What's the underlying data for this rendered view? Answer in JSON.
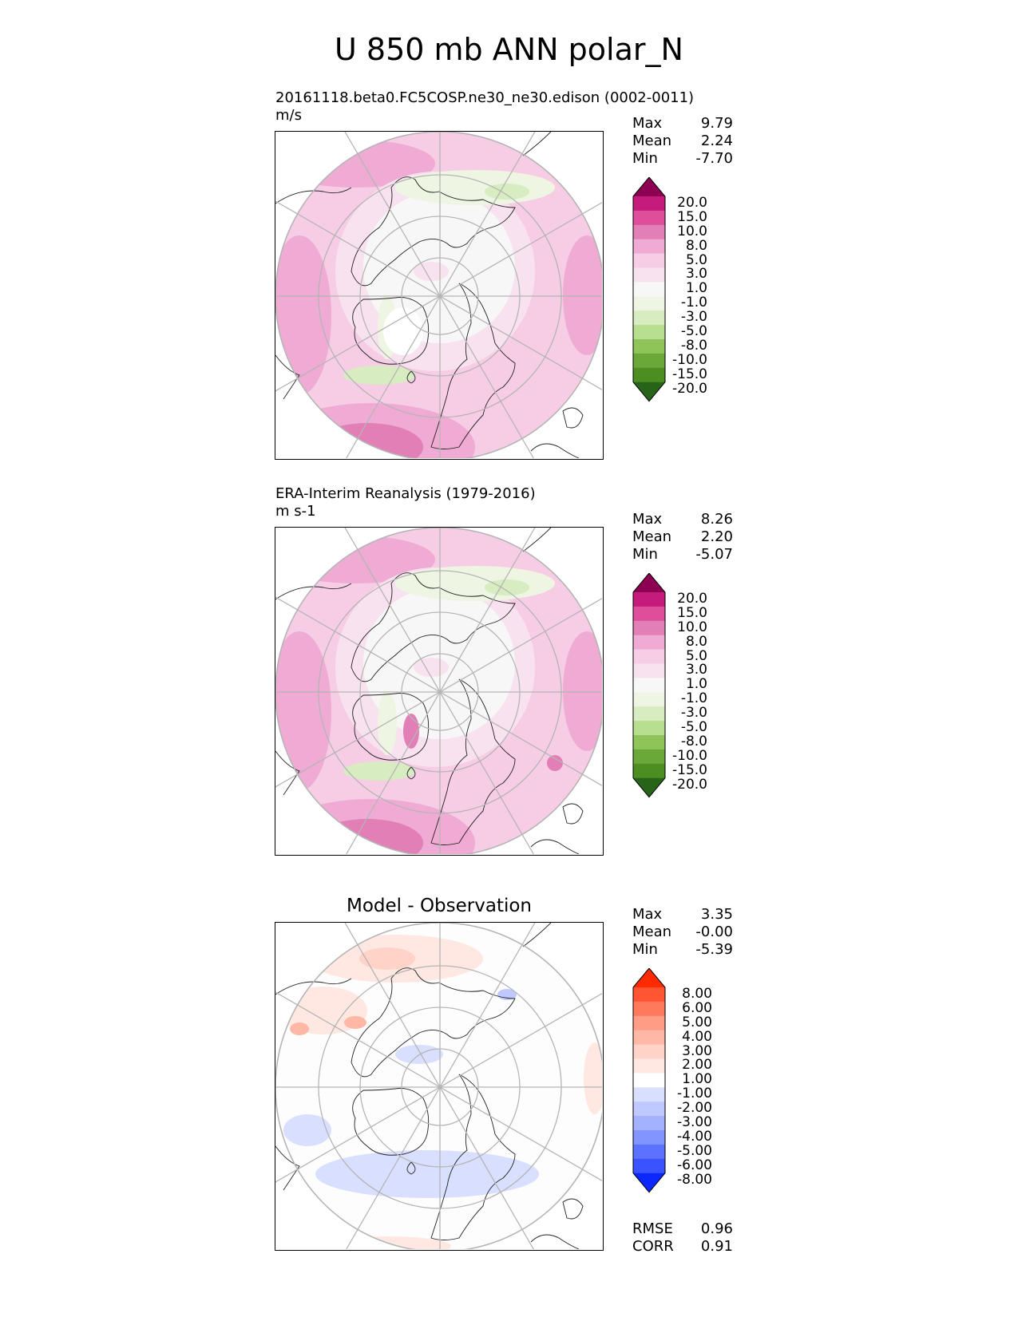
{
  "figure_title": "U 850 mb ANN polar_N",
  "panels": [
    {
      "caption_line1": "20161118.beta0.FC5COSP.ne30_ne30.edison (0002-0011)",
      "caption_line2": "m/s",
      "stats": {
        "max_label": "Max",
        "max": "9.79",
        "mean_label": "Mean",
        "mean": "2.24",
        "min_label": "Min",
        "min": "-7.70"
      },
      "colorbar": {
        "ticks": [
          "20.0",
          "15.0",
          "10.0",
          "8.0",
          "5.0",
          "3.0",
          "1.0",
          "-1.0",
          "-3.0",
          "-5.0",
          "-8.0",
          "-10.0",
          "-15.0",
          "-20.0"
        ],
        "colors": [
          "#8e0152",
          "#c51b7d",
          "#de4e9a",
          "#e27fb7",
          "#efabd3",
          "#f6cde5",
          "#f9e2ef",
          "#f7f7f7",
          "#eef5e2",
          "#d7ecc0",
          "#b8df90",
          "#8fc45a",
          "#6aa83a",
          "#4d8e22",
          "#276419"
        ]
      }
    },
    {
      "caption_line1": "ERA-Interim Reanalysis (1979-2016)",
      "caption_line2": "m s-1",
      "stats": {
        "max_label": "Max",
        "max": "8.26",
        "mean_label": "Mean",
        "mean": "2.20",
        "min_label": "Min",
        "min": "-5.07"
      },
      "colorbar": {
        "ticks": [
          "20.0",
          "15.0",
          "10.0",
          "8.0",
          "5.0",
          "3.0",
          "1.0",
          "-1.0",
          "-3.0",
          "-5.0",
          "-8.0",
          "-10.0",
          "-15.0",
          "-20.0"
        ],
        "colors": [
          "#8e0152",
          "#c51b7d",
          "#de4e9a",
          "#e27fb7",
          "#efabd3",
          "#f6cde5",
          "#f9e2ef",
          "#f7f7f7",
          "#eef5e2",
          "#d7ecc0",
          "#b8df90",
          "#8fc45a",
          "#6aa83a",
          "#4d8e22",
          "#276419"
        ]
      }
    },
    {
      "panel_title": "Model - Observation",
      "stats": {
        "max_label": "Max",
        "max": "3.35",
        "mean_label": "Mean",
        "mean": "-0.00",
        "min_label": "Min",
        "min": "-5.39"
      },
      "colorbar": {
        "ticks": [
          "8.00",
          "6.00",
          "5.00",
          "4.00",
          "3.00",
          "2.00",
          "1.00",
          "-1.00",
          "-2.00",
          "-3.00",
          "-4.00",
          "-5.00",
          "-6.00",
          "-8.00"
        ],
        "colors": [
          "#ff2a00",
          "#ff5533",
          "#ff7a5c",
          "#ff9c85",
          "#ffb8a6",
          "#ffd3c7",
          "#ffe8e1",
          "#ffffff",
          "#d9dfff",
          "#bfc9ff",
          "#a3b1ff",
          "#8194ff",
          "#5c72ff",
          "#3a52ff",
          "#0a28ff"
        ]
      },
      "metrics": {
        "rmse_label": "RMSE",
        "rmse": "0.96",
        "corr_label": "CORR",
        "corr": "0.91"
      }
    }
  ]
}
